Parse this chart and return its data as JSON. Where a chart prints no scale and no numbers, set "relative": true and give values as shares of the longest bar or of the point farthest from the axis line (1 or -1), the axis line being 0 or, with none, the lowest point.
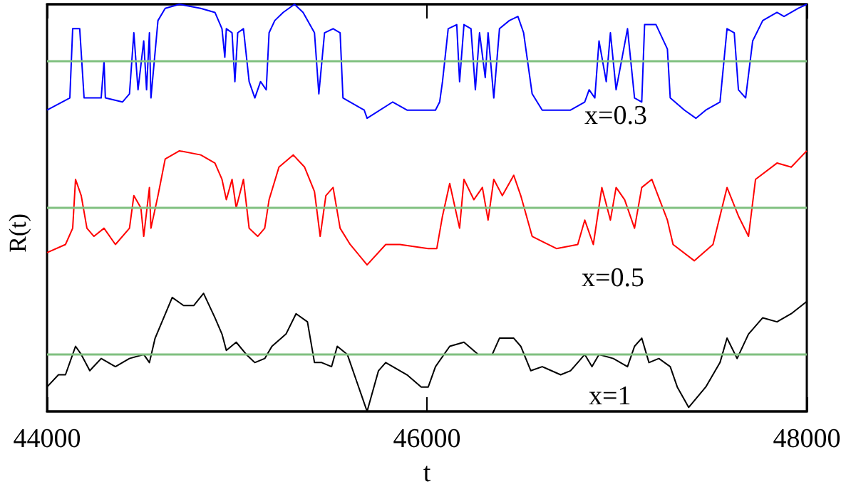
{
  "chart_data": {
    "type": "line",
    "xlabel": "t",
    "ylabel": "R(t)",
    "relative": true,
    "xlim": [
      44000,
      48000
    ],
    "xticks": [
      44000,
      46000,
      48000
    ],
    "grid": false,
    "marker": "none",
    "ref_lines": [
      {
        "axis": "y",
        "value": 0.86,
        "color": "#80c080"
      },
      {
        "axis": "y",
        "value": 0.5,
        "color": "#80c080"
      },
      {
        "axis": "y",
        "value": 0.14,
        "color": "#80c080"
      }
    ],
    "series": [
      {
        "name": "x=0.3",
        "color": "#0000ff",
        "x": [
          44000,
          44120,
          44135,
          44172,
          44195,
          44285,
          44300,
          44307,
          44397,
          44434,
          44457,
          44479,
          44509,
          44524,
          44539,
          44547,
          44584,
          44622,
          44697,
          44809,
          44884,
          44921,
          44936,
          44944,
          44974,
          44989,
          45004,
          45034,
          45064,
          45094,
          45124,
          45154,
          45169,
          45199,
          45243,
          45303,
          45348,
          45408,
          45431,
          45461,
          45506,
          45543,
          45558,
          45670,
          45685,
          45820,
          45895,
          46045,
          46067,
          46082,
          46112,
          46157,
          46172,
          46195,
          46232,
          46255,
          46277,
          46307,
          46322,
          46352,
          46382,
          46434,
          46479,
          46509,
          46554,
          46607,
          46756,
          46831,
          46854,
          46884,
          46906,
          46944,
          46966,
          46996,
          47056,
          47093,
          47131,
          47146,
          47206,
          47266,
          47281,
          47356,
          47416,
          47468,
          47543,
          47580,
          47618,
          47640,
          47678,
          47715,
          47768,
          47843,
          47880,
          47955,
          48000
        ],
        "values": [
          0.74,
          0.77,
          0.94,
          0.94,
          0.77,
          0.77,
          0.86,
          0.77,
          0.76,
          0.78,
          0.93,
          0.79,
          0.91,
          0.79,
          0.93,
          0.77,
          0.96,
          0.99,
          1.0,
          0.99,
          0.98,
          0.94,
          0.87,
          0.94,
          0.93,
          0.81,
          0.93,
          0.94,
          0.81,
          0.77,
          0.81,
          0.79,
          0.93,
          0.96,
          0.98,
          1.0,
          0.98,
          0.93,
          0.78,
          0.93,
          0.94,
          0.93,
          0.77,
          0.74,
          0.72,
          0.76,
          0.74,
          0.74,
          0.76,
          0.81,
          0.94,
          0.95,
          0.81,
          0.95,
          0.94,
          0.79,
          0.93,
          0.82,
          0.93,
          0.77,
          0.94,
          0.96,
          0.97,
          0.93,
          0.78,
          0.74,
          0.74,
          0.76,
          0.79,
          0.77,
          0.91,
          0.81,
          0.93,
          0.79,
          0.94,
          0.77,
          0.76,
          0.95,
          0.95,
          0.89,
          0.77,
          0.74,
          0.72,
          0.74,
          0.76,
          0.94,
          0.93,
          0.79,
          0.77,
          0.91,
          0.96,
          0.98,
          0.97,
          0.99,
          1.0
        ]
      },
      {
        "name": "x=0.5",
        "color": "#ff0000",
        "x": [
          44000,
          44097,
          44135,
          44150,
          44180,
          44210,
          44247,
          44300,
          44360,
          44434,
          44457,
          44494,
          44509,
          44539,
          44547,
          44584,
          44622,
          44697,
          44809,
          44884,
          44921,
          44944,
          44974,
          44996,
          45034,
          45064,
          45109,
          45146,
          45169,
          45221,
          45296,
          45356,
          45408,
          45438,
          45468,
          45506,
          45543,
          45596,
          45685,
          45783,
          45858,
          46007,
          46052,
          46082,
          46120,
          46172,
          46195,
          46247,
          46292,
          46322,
          46352,
          46397,
          46457,
          46494,
          46554,
          46682,
          46794,
          46831,
          46876,
          46921,
          46966,
          46996,
          47041,
          47093,
          47131,
          47184,
          47266,
          47296,
          47408,
          47506,
          47580,
          47640,
          47693,
          47730,
          47843,
          47918,
          48000
        ],
        "values": [
          0.39,
          0.41,
          0.45,
          0.57,
          0.53,
          0.45,
          0.43,
          0.45,
          0.41,
          0.45,
          0.53,
          0.5,
          0.43,
          0.55,
          0.45,
          0.53,
          0.62,
          0.64,
          0.63,
          0.61,
          0.57,
          0.52,
          0.57,
          0.5,
          0.57,
          0.45,
          0.43,
          0.45,
          0.52,
          0.6,
          0.63,
          0.6,
          0.54,
          0.43,
          0.53,
          0.55,
          0.45,
          0.41,
          0.36,
          0.41,
          0.41,
          0.4,
          0.4,
          0.48,
          0.56,
          0.45,
          0.57,
          0.52,
          0.55,
          0.47,
          0.57,
          0.53,
          0.58,
          0.53,
          0.43,
          0.4,
          0.41,
          0.47,
          0.41,
          0.55,
          0.47,
          0.55,
          0.52,
          0.45,
          0.55,
          0.57,
          0.47,
          0.41,
          0.37,
          0.41,
          0.55,
          0.48,
          0.43,
          0.57,
          0.61,
          0.6,
          0.64
        ]
      },
      {
        "name": "x=1",
        "color": "#000000",
        "x": [
          44000,
          44060,
          44097,
          44150,
          44180,
          44225,
          44285,
          44360,
          44434,
          44509,
          44539,
          44569,
          44659,
          44719,
          44772,
          44824,
          44884,
          44921,
          44944,
          44996,
          45049,
          45094,
          45146,
          45184,
          45258,
          45311,
          45371,
          45408,
          45446,
          45498,
          45528,
          45581,
          45633,
          45685,
          45745,
          45783,
          45895,
          45970,
          46007,
          46045,
          46120,
          46195,
          46270,
          46344,
          46382,
          46457,
          46494,
          46547,
          46607,
          46704,
          46756,
          46794,
          46831,
          46869,
          46906,
          46981,
          47056,
          47093,
          47131,
          47169,
          47221,
          47281,
          47318,
          47378,
          47468,
          47543,
          47580,
          47633,
          47693,
          47768,
          47843,
          47918,
          48000
        ],
        "values": [
          0.06,
          0.09,
          0.09,
          0.16,
          0.14,
          0.1,
          0.13,
          0.11,
          0.13,
          0.14,
          0.12,
          0.18,
          0.28,
          0.26,
          0.26,
          0.29,
          0.23,
          0.19,
          0.15,
          0.17,
          0.14,
          0.12,
          0.13,
          0.16,
          0.19,
          0.24,
          0.22,
          0.12,
          0.12,
          0.11,
          0.16,
          0.14,
          0.07,
          0.0,
          0.1,
          0.12,
          0.09,
          0.06,
          0.06,
          0.11,
          0.16,
          0.17,
          0.14,
          0.14,
          0.18,
          0.18,
          0.16,
          0.1,
          0.11,
          0.09,
          0.1,
          0.12,
          0.14,
          0.11,
          0.14,
          0.13,
          0.11,
          0.16,
          0.18,
          0.12,
          0.13,
          0.11,
          0.06,
          0.01,
          0.06,
          0.12,
          0.18,
          0.13,
          0.19,
          0.23,
          0.22,
          0.24,
          0.27
        ]
      }
    ]
  }
}
